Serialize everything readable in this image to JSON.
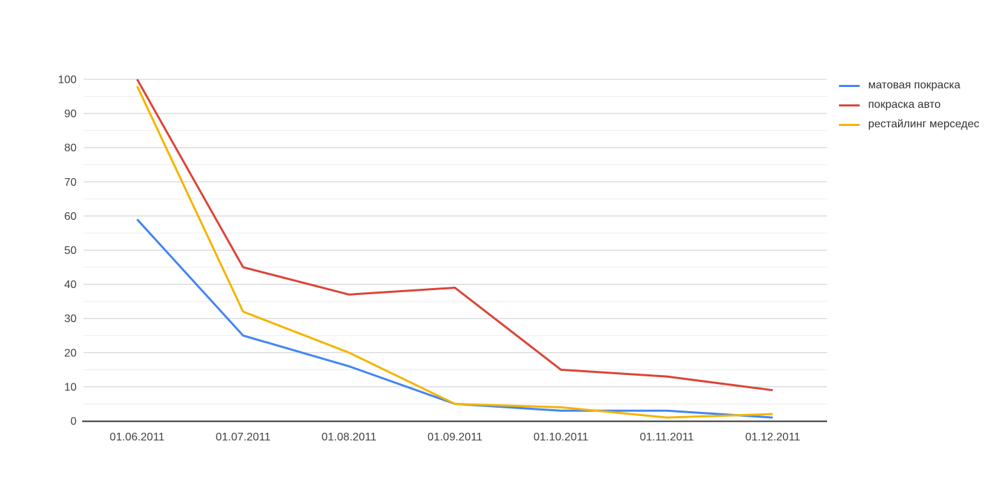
{
  "chart_data": {
    "type": "line",
    "title": "",
    "xlabel": "",
    "ylabel": "",
    "categories": [
      "01.06.2011",
      "01.07.2011",
      "01.08.2011",
      "01.09.2011",
      "01.10.2011",
      "01.11.2011",
      "01.12.2011"
    ],
    "series": [
      {
        "name": "матовая покраска",
        "color": "#4285f4",
        "values": [
          59,
          25,
          16,
          5,
          3,
          3,
          1
        ]
      },
      {
        "name": "покраска авто",
        "color": "#db4437",
        "values": [
          100,
          45,
          37,
          39,
          15,
          13,
          9
        ]
      },
      {
        "name": "рестайлинг мерседес",
        "color": "#f4b400",
        "values": [
          98,
          32,
          20,
          5,
          4,
          1,
          2
        ]
      }
    ],
    "ylim": [
      0,
      100
    ],
    "y_ticks": [
      0,
      10,
      20,
      30,
      40,
      50,
      60,
      70,
      80,
      90,
      100
    ],
    "y_minor_step": 5,
    "grid": true,
    "grid_major_color": "#cccccc",
    "grid_minor_color": "#ebebeb",
    "axis_color": "#333333",
    "tick_label_color": "#424242",
    "legend_position": "right"
  }
}
